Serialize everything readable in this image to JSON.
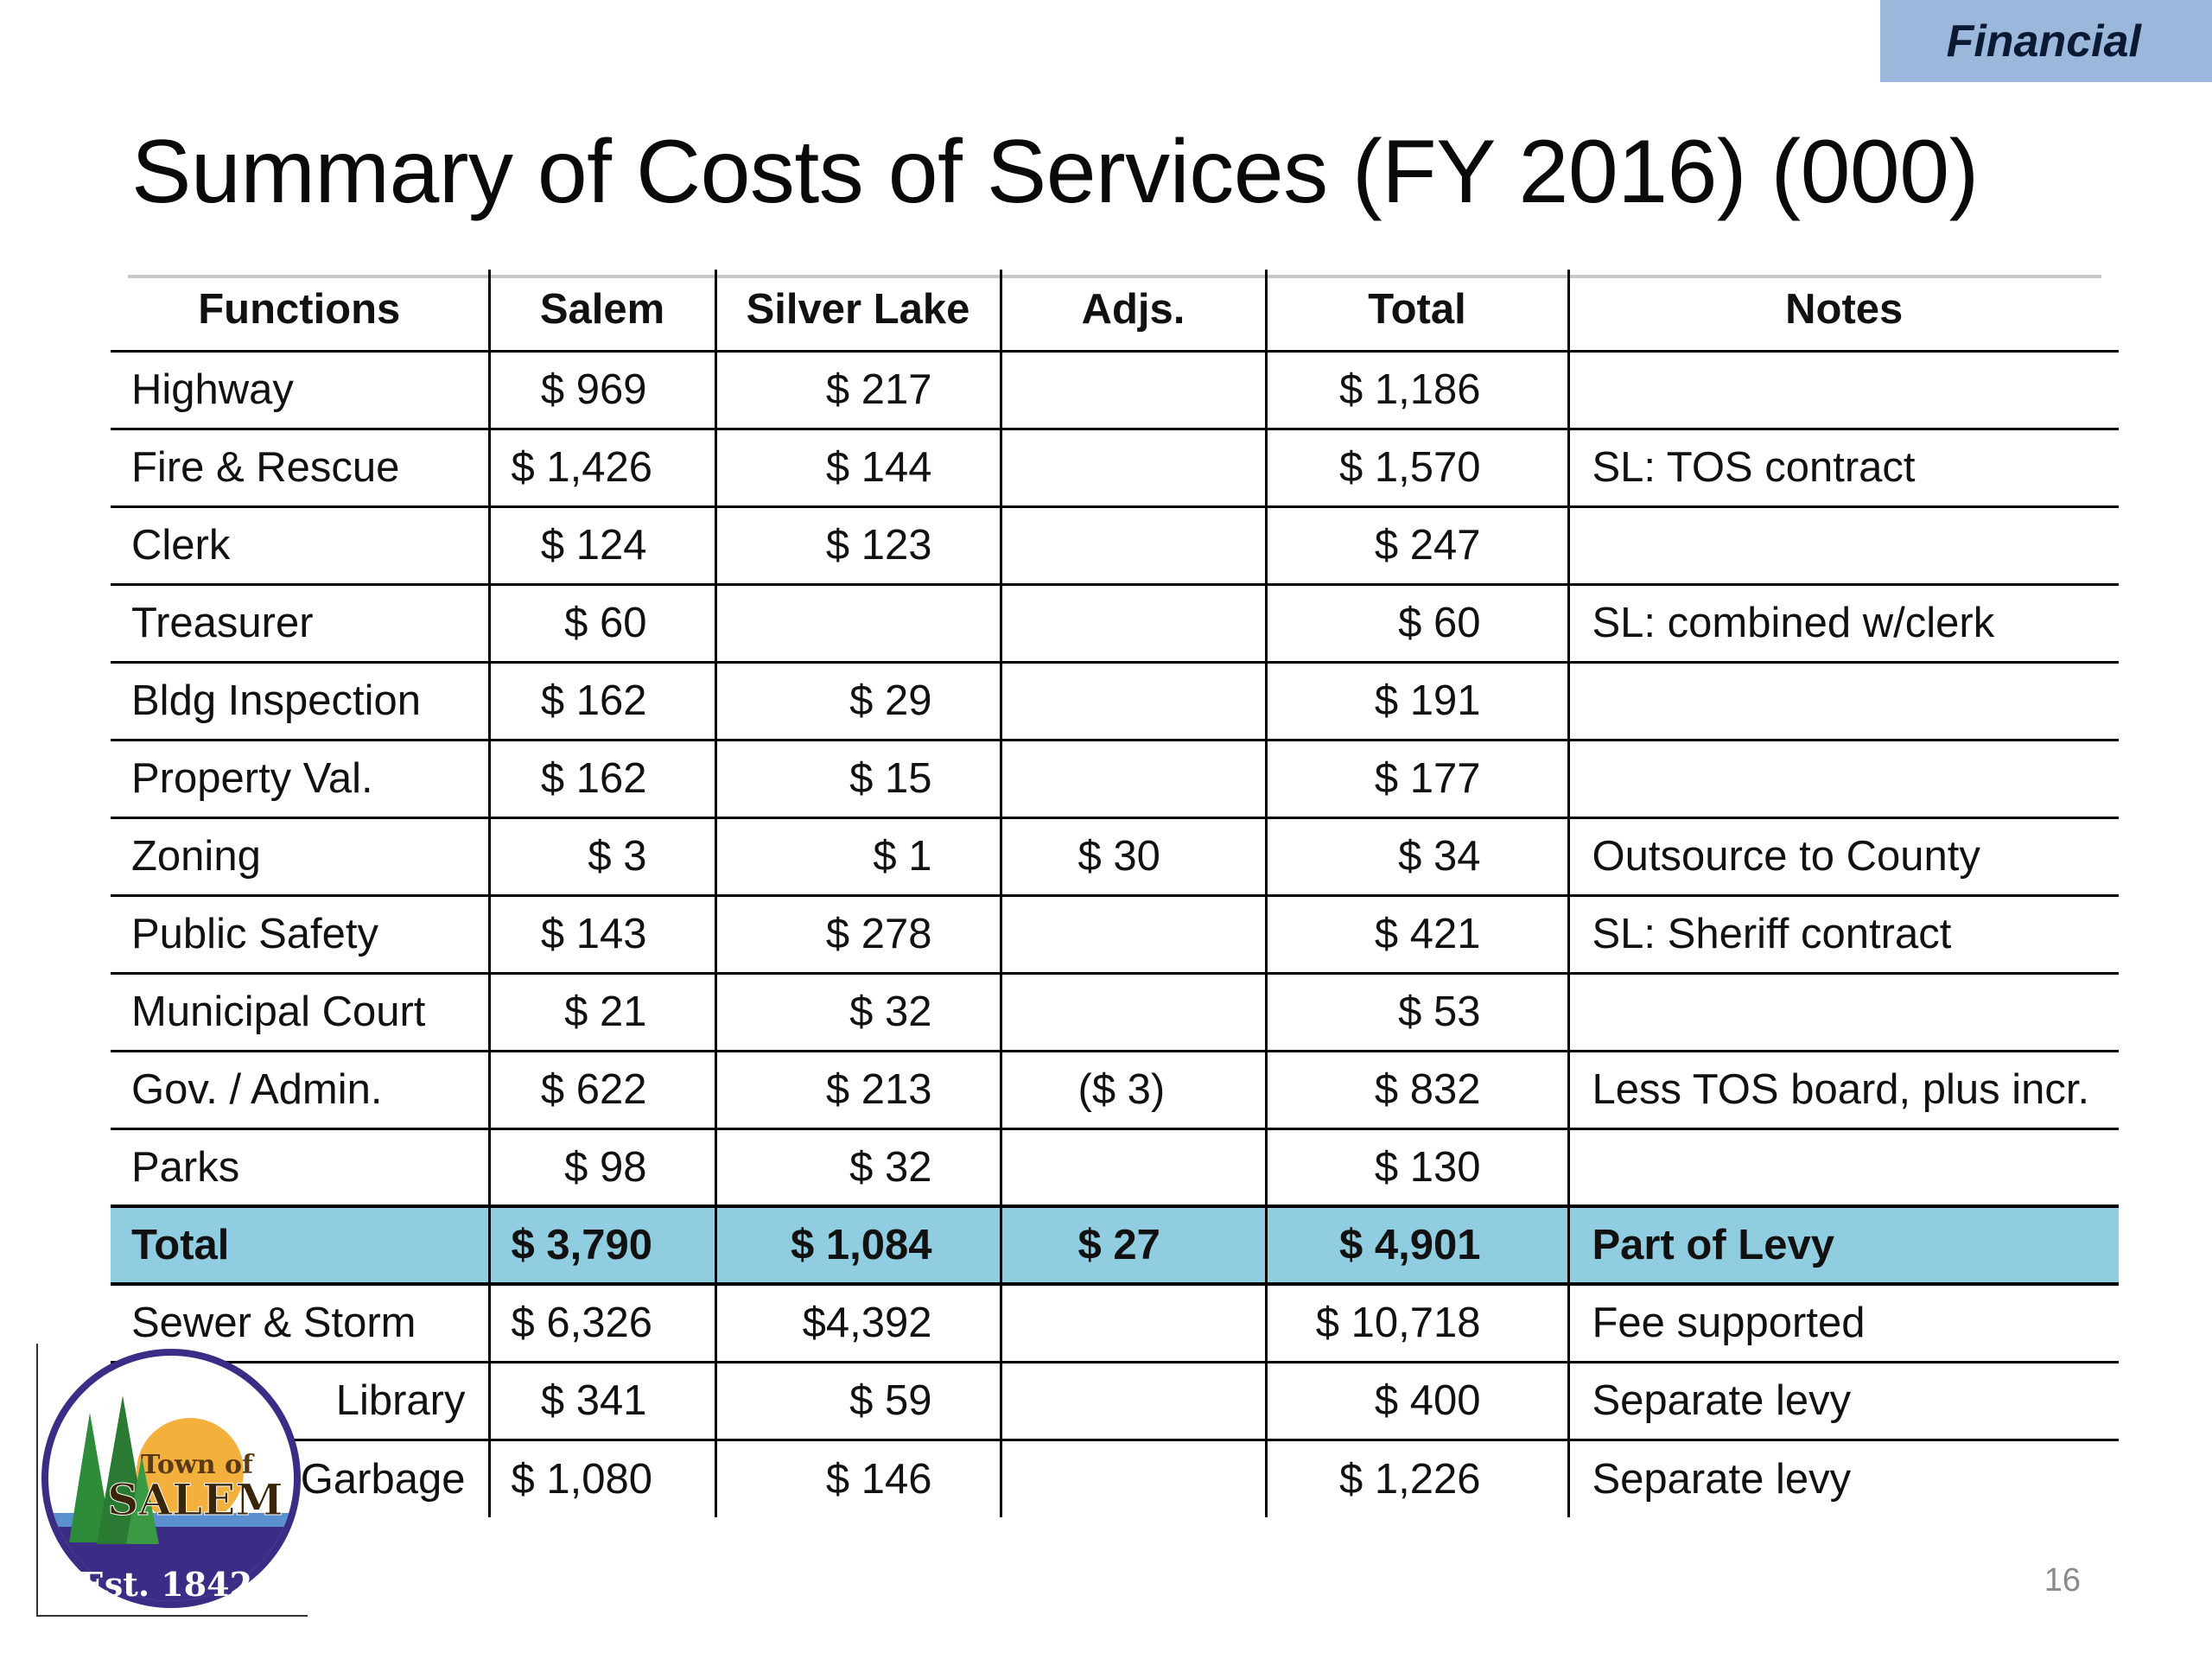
{
  "section_tag": "Financial",
  "title": "Summary of Costs of Services (FY 2016) (000)",
  "table": {
    "headers": [
      "Functions",
      "Salem",
      "Silver Lake",
      "Adjs.",
      "Total",
      "Notes"
    ],
    "rows": [
      {
        "function": "Highway",
        "salem": "$ 969",
        "silver_lake": "$ 217",
        "adjs": "",
        "total": "$ 1,186",
        "notes": ""
      },
      {
        "function": "Fire & Rescue",
        "salem": "$ 1,426",
        "silver_lake": "$ 144",
        "adjs": "",
        "total": "$ 1,570",
        "notes": "SL: TOS contract"
      },
      {
        "function": "Clerk",
        "salem": "$ 124",
        "silver_lake": "$ 123",
        "adjs": "",
        "total": "$ 247",
        "notes": ""
      },
      {
        "function": "Treasurer",
        "salem": "$ 60",
        "silver_lake": "",
        "adjs": "",
        "total": "$ 60",
        "notes": "SL: combined w/clerk"
      },
      {
        "function": "Bldg Inspection",
        "salem": "$ 162",
        "silver_lake": "$ 29",
        "adjs": "",
        "total": "$ 191",
        "notes": ""
      },
      {
        "function": "Property Val.",
        "salem": "$ 162",
        "silver_lake": "$ 15",
        "adjs": "",
        "total": "$ 177",
        "notes": ""
      },
      {
        "function": "Zoning",
        "salem": "$ 3",
        "silver_lake": "$ 1",
        "adjs": "$ 30",
        "total": "$ 34",
        "notes": "Outsource to County"
      },
      {
        "function": "Public Safety",
        "salem": "$ 143",
        "silver_lake": "$ 278",
        "adjs": "",
        "total": "$ 421",
        "notes": "SL: Sheriff contract"
      },
      {
        "function": "Municipal Court",
        "salem": "$ 21",
        "silver_lake": "$ 32",
        "adjs": "",
        "total": "$ 53",
        "notes": ""
      },
      {
        "function": "Gov. /  Admin.",
        "salem": "$ 622",
        "silver_lake": "$ 213",
        "adjs": "($ 3)",
        "total": "$ 832",
        "notes": "Less TOS board, plus incr."
      },
      {
        "function": "Parks",
        "salem": "$ 98",
        "silver_lake": "$ 32",
        "adjs": "",
        "total": "$ 130",
        "notes": ""
      }
    ],
    "total_row": {
      "function": "Total",
      "salem": "$ 3,790",
      "silver_lake": "$ 1,084",
      "adjs": "$ 27",
      "total": "$ 4,901",
      "notes": "Part of Levy"
    },
    "extra_rows": [
      {
        "function": "Sewer & Storm",
        "salem": "$ 6,326",
        "silver_lake": "$4,392",
        "adjs": "",
        "total": "$ 10,718",
        "notes": "Fee supported"
      },
      {
        "function": "Library",
        "salem": "$ 341",
        "silver_lake": "$ 59",
        "adjs": "",
        "total": "$ 400",
        "notes": "Separate levy"
      },
      {
        "function": "Garbage",
        "salem": "$ 1,080",
        "silver_lake": "$ 146",
        "adjs": "",
        "total": "$ 1,226",
        "notes": "Separate levy"
      }
    ]
  },
  "logo": {
    "line1": "Town of",
    "line2": "SALEM",
    "line3": "Est. 1842"
  },
  "page_number": "16"
}
